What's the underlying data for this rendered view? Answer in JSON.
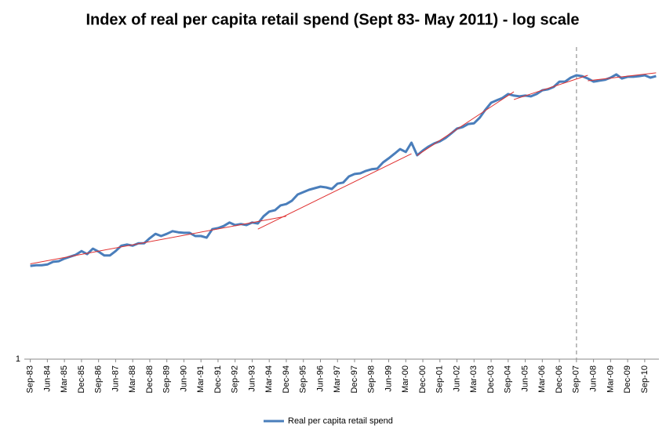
{
  "chart_data": {
    "type": "line",
    "title": "Index of real per capita retail spend (Sept 83- May 2011) - log scale",
    "log_scale": true,
    "grid": false,
    "legend": "bottom",
    "ylim": [
      1,
      10
    ],
    "yticks": [
      1
    ],
    "categories": [
      "Sep-83",
      null,
      null,
      "Jun-84",
      null,
      null,
      "Mar-85",
      null,
      null,
      "Dec-85",
      null,
      null,
      "Sep-86",
      null,
      null,
      "Jun-87",
      null,
      null,
      "Mar-88",
      null,
      null,
      "Dec-88",
      null,
      null,
      "Sep-89",
      null,
      null,
      "Jun-90",
      null,
      null,
      "Mar-91",
      null,
      null,
      "Dec-91",
      null,
      null,
      "Sep-92",
      null,
      null,
      "Jun-93",
      null,
      null,
      "Mar-94",
      null,
      null,
      "Dec-94",
      null,
      null,
      "Sep-95",
      null,
      null,
      "Jun-96",
      null,
      null,
      "Mar-97",
      null,
      null,
      "Dec-97",
      null,
      null,
      "Sep-98",
      null,
      null,
      "Jun-99",
      null,
      null,
      "Mar-00",
      null,
      null,
      "Dec-00",
      null,
      null,
      "Sep-01",
      null,
      null,
      "Jun-02",
      null,
      null,
      "Mar-03",
      null,
      null,
      "Dec-03",
      null,
      null,
      "Sep-04",
      null,
      null,
      "Jun-05",
      null,
      null,
      "Mar-06",
      null,
      null,
      "Dec-06",
      null,
      null,
      "Sep-07",
      null,
      null,
      "Jun-08",
      null,
      null,
      "Mar-09",
      null,
      null,
      "Dec-09",
      null,
      null,
      "Sep-10",
      null,
      null
    ],
    "series": [
      {
        "name": "Real per capita retail spend",
        "color": "#4a7ebb",
        "values": [
          1.99,
          2.0,
          2.0,
          2.01,
          2.05,
          2.06,
          2.1,
          2.13,
          2.16,
          2.22,
          2.17,
          2.26,
          2.21,
          2.15,
          2.15,
          2.22,
          2.31,
          2.33,
          2.31,
          2.35,
          2.35,
          2.44,
          2.52,
          2.48,
          2.52,
          2.57,
          2.55,
          2.54,
          2.54,
          2.48,
          2.48,
          2.45,
          2.61,
          2.63,
          2.67,
          2.74,
          2.69,
          2.71,
          2.69,
          2.74,
          2.72,
          2.87,
          2.97,
          3.0,
          3.11,
          3.14,
          3.22,
          3.37,
          3.43,
          3.49,
          3.53,
          3.57,
          3.55,
          3.51,
          3.65,
          3.68,
          3.85,
          3.92,
          3.94,
          4.01,
          4.06,
          4.08,
          4.27,
          4.4,
          4.55,
          4.71,
          4.61,
          4.94,
          4.5,
          4.66,
          4.8,
          4.91,
          4.99,
          5.11,
          5.29,
          5.48,
          5.54,
          5.67,
          5.7,
          5.94,
          6.3,
          6.63,
          6.75,
          6.87,
          7.07,
          6.99,
          6.95,
          6.99,
          6.95,
          7.07,
          7.27,
          7.32,
          7.45,
          7.75,
          7.75,
          7.98,
          8.12,
          8.07,
          7.93,
          7.75,
          7.8,
          7.85,
          7.98,
          8.17,
          7.93,
          8.03,
          8.03,
          8.07,
          8.12,
          7.98,
          8.07
        ]
      }
    ],
    "trend_color": "#e03030",
    "trend_lines": [
      {
        "x": [
          0,
          45
        ],
        "values": [
          2.02,
          2.87
        ]
      },
      {
        "x": [
          40,
          67
        ],
        "values": [
          2.61,
          4.55
        ]
      },
      {
        "x": [
          68,
          85
        ],
        "values": [
          4.5,
          7.19
        ]
      },
      {
        "x": [
          85,
          98
        ],
        "values": [
          6.79,
          8.12
        ]
      },
      {
        "x": [
          98,
          110
        ],
        "values": [
          7.8,
          8.27
        ]
      }
    ],
    "reference_x": 96
  }
}
